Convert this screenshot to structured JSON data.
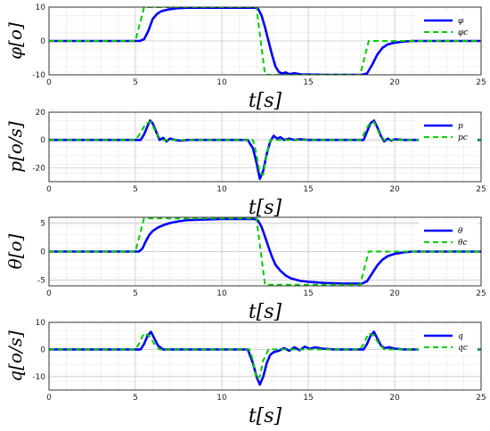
{
  "chart_data": [
    {
      "type": "line",
      "ylabel": "φ[o]",
      "xlabel": "t[s]",
      "xlim": [
        0,
        25
      ],
      "ylim": [
        -10,
        10
      ],
      "xticks": [
        "0",
        "5",
        "10",
        "15",
        "20",
        "25"
      ],
      "yticks": [
        "10",
        "0",
        "-10"
      ],
      "grid": true,
      "legend_position": "top-right",
      "series": [
        {
          "name": "φ",
          "style": "solid",
          "color": "#0000ff",
          "x": [
            0,
            5.25,
            5.5,
            5.75,
            6,
            6.25,
            6.5,
            7,
            7.5,
            8,
            9,
            10,
            11,
            11.95,
            12.1,
            12.3,
            12.5,
            12.7,
            12.9,
            13.1,
            13.3,
            13.5,
            13.7,
            13.9,
            14.2,
            14.6,
            15,
            16,
            17,
            18.1,
            18.4,
            18.7,
            19,
            19.3,
            19.6,
            20,
            20.5,
            21,
            22,
            25
          ],
          "y": [
            0,
            0,
            0.5,
            3,
            6.5,
            8,
            8.8,
            9.4,
            9.7,
            9.8,
            9.8,
            9.8,
            9.8,
            9.8,
            9.5,
            7.5,
            4,
            0,
            -4,
            -7.5,
            -9.2,
            -9.6,
            -9.3,
            -9.8,
            -9.5,
            -9.9,
            -9.9,
            -10,
            -10,
            -10,
            -9.6,
            -7,
            -4,
            -2,
            -1,
            -0.5,
            -0.2,
            0,
            0,
            0
          ]
        },
        {
          "name": "φc",
          "style": "dashed",
          "color": "#00cc00",
          "x": [
            0,
            5,
            5.5,
            12,
            12.5,
            18,
            18.5,
            25
          ],
          "y": [
            0,
            0,
            10,
            10,
            -10,
            -10,
            0,
            0
          ]
        }
      ]
    },
    {
      "type": "line",
      "ylabel": "p[o/s]",
      "xlabel": "t[s]",
      "xlim": [
        0,
        25
      ],
      "ylim": [
        -30,
        20
      ],
      "xticks": [
        "0",
        "5",
        "10",
        "15",
        "20",
        "25"
      ],
      "yticks": [
        "20",
        "0",
        "-20"
      ],
      "grid": true,
      "legend_position": "top-right",
      "series": [
        {
          "name": "p",
          "style": "solid",
          "color": "#0000ff",
          "x": [
            0,
            5.3,
            5.5,
            5.7,
            5.85,
            6,
            6.2,
            6.4,
            6.6,
            6.8,
            7,
            7.3,
            7.6,
            8,
            9,
            11.5,
            11.8,
            12,
            12.2,
            12.4,
            12.6,
            12.8,
            13,
            13.2,
            13.4,
            13.6,
            13.9,
            14.2,
            14.5,
            15,
            16,
            18.2,
            18.4,
            18.6,
            18.8,
            19,
            19.2,
            19.4,
            19.6,
            19.8,
            20,
            20.5,
            21,
            25
          ],
          "y": [
            0,
            0,
            4,
            10,
            14,
            12,
            6,
            0,
            1.5,
            -1,
            1,
            0,
            -0.5,
            0,
            0,
            0,
            -6,
            -16,
            -28,
            -22,
            -10,
            -1,
            3,
            1,
            2,
            0,
            1,
            0,
            0.5,
            0,
            0,
            0,
            6,
            12,
            14,
            9,
            3,
            -1,
            1,
            -0.5,
            0.5,
            0,
            0,
            0
          ]
        },
        {
          "name": "pc",
          "style": "dashed",
          "color": "#00cc00",
          "x": [
            0,
            5,
            5.3,
            5.6,
            5.9,
            6.2,
            6.5,
            11.8,
            12,
            12.2,
            12.4,
            12.6,
            12.8,
            18,
            18.2,
            18.5,
            18.8,
            19.1,
            19.4,
            25
          ],
          "y": [
            0,
            0,
            5,
            12,
            13,
            5,
            0,
            0,
            -10,
            -24,
            -25,
            -10,
            0,
            0,
            4,
            11,
            13,
            5,
            0,
            0
          ]
        }
      ]
    },
    {
      "type": "line",
      "ylabel": "θ[o]",
      "xlabel": "t[s]",
      "xlim": [
        0,
        25
      ],
      "ylim": [
        -6,
        6
      ],
      "xticks": [
        "0",
        "5",
        "10",
        "15",
        "20",
        "25"
      ],
      "yticks": [
        "5",
        "0",
        "-5"
      ],
      "grid": true,
      "legend_position": "top-right",
      "series": [
        {
          "name": "θ",
          "style": "solid",
          "color": "#0000ff",
          "x": [
            0,
            5.2,
            5.4,
            5.6,
            5.8,
            6,
            6.3,
            6.6,
            7,
            7.5,
            8,
            9,
            10,
            11,
            11.9,
            12.1,
            12.3,
            12.5,
            12.7,
            12.9,
            13.1,
            13.4,
            13.7,
            14,
            14.5,
            15,
            16,
            17,
            18.1,
            18.4,
            18.7,
            19,
            19.3,
            19.6,
            20,
            20.5,
            21,
            22,
            25
          ],
          "y": [
            0,
            0,
            0.5,
            1.8,
            2.9,
            3.6,
            4.2,
            4.6,
            5,
            5.3,
            5.5,
            5.6,
            5.7,
            5.7,
            5.7,
            5.4,
            4.3,
            2.6,
            0.8,
            -0.9,
            -2.3,
            -3.4,
            -4.2,
            -4.7,
            -5.1,
            -5.3,
            -5.5,
            -5.6,
            -5.6,
            -5.2,
            -3.8,
            -2.4,
            -1.4,
            -0.8,
            -0.4,
            -0.15,
            0,
            0,
            0
          ]
        },
        {
          "name": "θc",
          "style": "dashed",
          "color": "#00cc00",
          "x": [
            0,
            5,
            5.5,
            12,
            12.5,
            18,
            18.5,
            25
          ],
          "y": [
            0,
            0,
            5.8,
            5.8,
            -5.8,
            -5.8,
            0,
            0
          ]
        }
      ]
    },
    {
      "type": "line",
      "ylabel": "q[o/s]",
      "xlabel": "t[s]",
      "xlim": [
        0,
        25
      ],
      "ylim": [
        -15,
        10
      ],
      "xticks": [
        "0",
        "5",
        "10",
        "15",
        "20",
        "25"
      ],
      "yticks": [
        "10",
        "0",
        "-10"
      ],
      "grid": true,
      "legend_position": "top-right",
      "series": [
        {
          "name": "q",
          "style": "solid",
          "color": "#0000ff",
          "x": [
            0,
            5.3,
            5.5,
            5.7,
            5.9,
            6.1,
            6.3,
            6.6,
            7,
            8,
            11.5,
            11.8,
            12,
            12.2,
            12.4,
            12.6,
            12.8,
            13,
            13.3,
            13.6,
            13.9,
            14.2,
            14.5,
            14.8,
            15.1,
            15.4,
            15.8,
            16.5,
            18.2,
            18.4,
            18.6,
            18.8,
            19,
            19.2,
            19.4,
            19.7,
            20,
            20.5,
            21,
            25
          ],
          "y": [
            0,
            0,
            2,
            5,
            6.5,
            4,
            1.5,
            0,
            0,
            0,
            0,
            -5,
            -10,
            -13,
            -10,
            -5,
            -2,
            -1,
            -0.5,
            0.5,
            -0.5,
            0.8,
            -0.3,
            1,
            0.2,
            0.8,
            0.3,
            0,
            0,
            2,
            5,
            6.5,
            4,
            1.5,
            0.5,
            0.8,
            0.3,
            0,
            0,
            0
          ]
        },
        {
          "name": "qc",
          "style": "dashed",
          "color": "#00cc00",
          "x": [
            0,
            5,
            5.2,
            5.5,
            5.8,
            6.1,
            6.4,
            11.6,
            11.8,
            12,
            12.2,
            12.4,
            12.7,
            18,
            18.2,
            18.5,
            18.8,
            19.1,
            19.4,
            25
          ],
          "y": [
            0,
            0,
            2,
            6,
            5,
            2,
            0,
            0,
            -4,
            -11,
            -10,
            -4,
            0,
            0,
            2,
            6,
            5,
            2,
            0,
            0
          ]
        }
      ]
    }
  ]
}
